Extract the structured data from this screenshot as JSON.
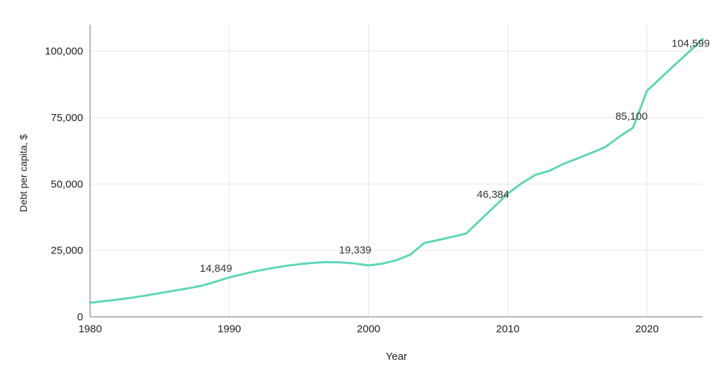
{
  "chart_data": {
    "type": "line",
    "title": "",
    "xlabel": "Year",
    "ylabel": "Debt per capita, $",
    "x": [
      1980,
      1981,
      1982,
      1983,
      1984,
      1985,
      1986,
      1987,
      1988,
      1989,
      1990,
      1991,
      1992,
      1993,
      1994,
      1995,
      1996,
      1997,
      1998,
      1999,
      2000,
      2001,
      2002,
      2003,
      2004,
      2005,
      2006,
      2007,
      2008,
      2009,
      2010,
      2011,
      2012,
      2013,
      2014,
      2015,
      2016,
      2017,
      2018,
      2019,
      2020,
      2021,
      2022,
      2023,
      2024
    ],
    "series": [
      {
        "name": "Debt per capita",
        "values": [
          5300,
          5900,
          6500,
          7200,
          8000,
          8900,
          9800,
          10700,
          11700,
          13200,
          14849,
          16100,
          17300,
          18300,
          19100,
          19800,
          20300,
          20600,
          20500,
          20100,
          19339,
          20000,
          21300,
          23400,
          27800,
          28900,
          30100,
          31300,
          36300,
          41300,
          46384,
          50300,
          53500,
          55000,
          57600,
          59600,
          61700,
          63900,
          67800,
          71200,
          85100,
          90000,
          94900,
          99700,
          104599
        ]
      }
    ],
    "x_ticks": [
      1980,
      1990,
      2000,
      2010,
      2020
    ],
    "y_ticks": [
      0,
      25000,
      50000,
      75000,
      100000
    ],
    "y_tick_labels": [
      "0",
      "25,000",
      "50,000",
      "75,000",
      "100,000"
    ],
    "xlim": [
      1980,
      2024
    ],
    "ylim": [
      0,
      110000
    ],
    "grid": true,
    "legend_position": "none",
    "line_color": "#5dd6b8",
    "annotations": [
      {
        "year": 1990,
        "value": 14849,
        "label": "14,849"
      },
      {
        "year": 2000,
        "value": 19339,
        "label": "19,339"
      },
      {
        "year": 2010,
        "value": 46384,
        "label": "46,384"
      },
      {
        "year": 2020,
        "value": 85100,
        "label": "85,100"
      },
      {
        "year": 2024,
        "value": 104599,
        "label": "104,599"
      }
    ]
  }
}
